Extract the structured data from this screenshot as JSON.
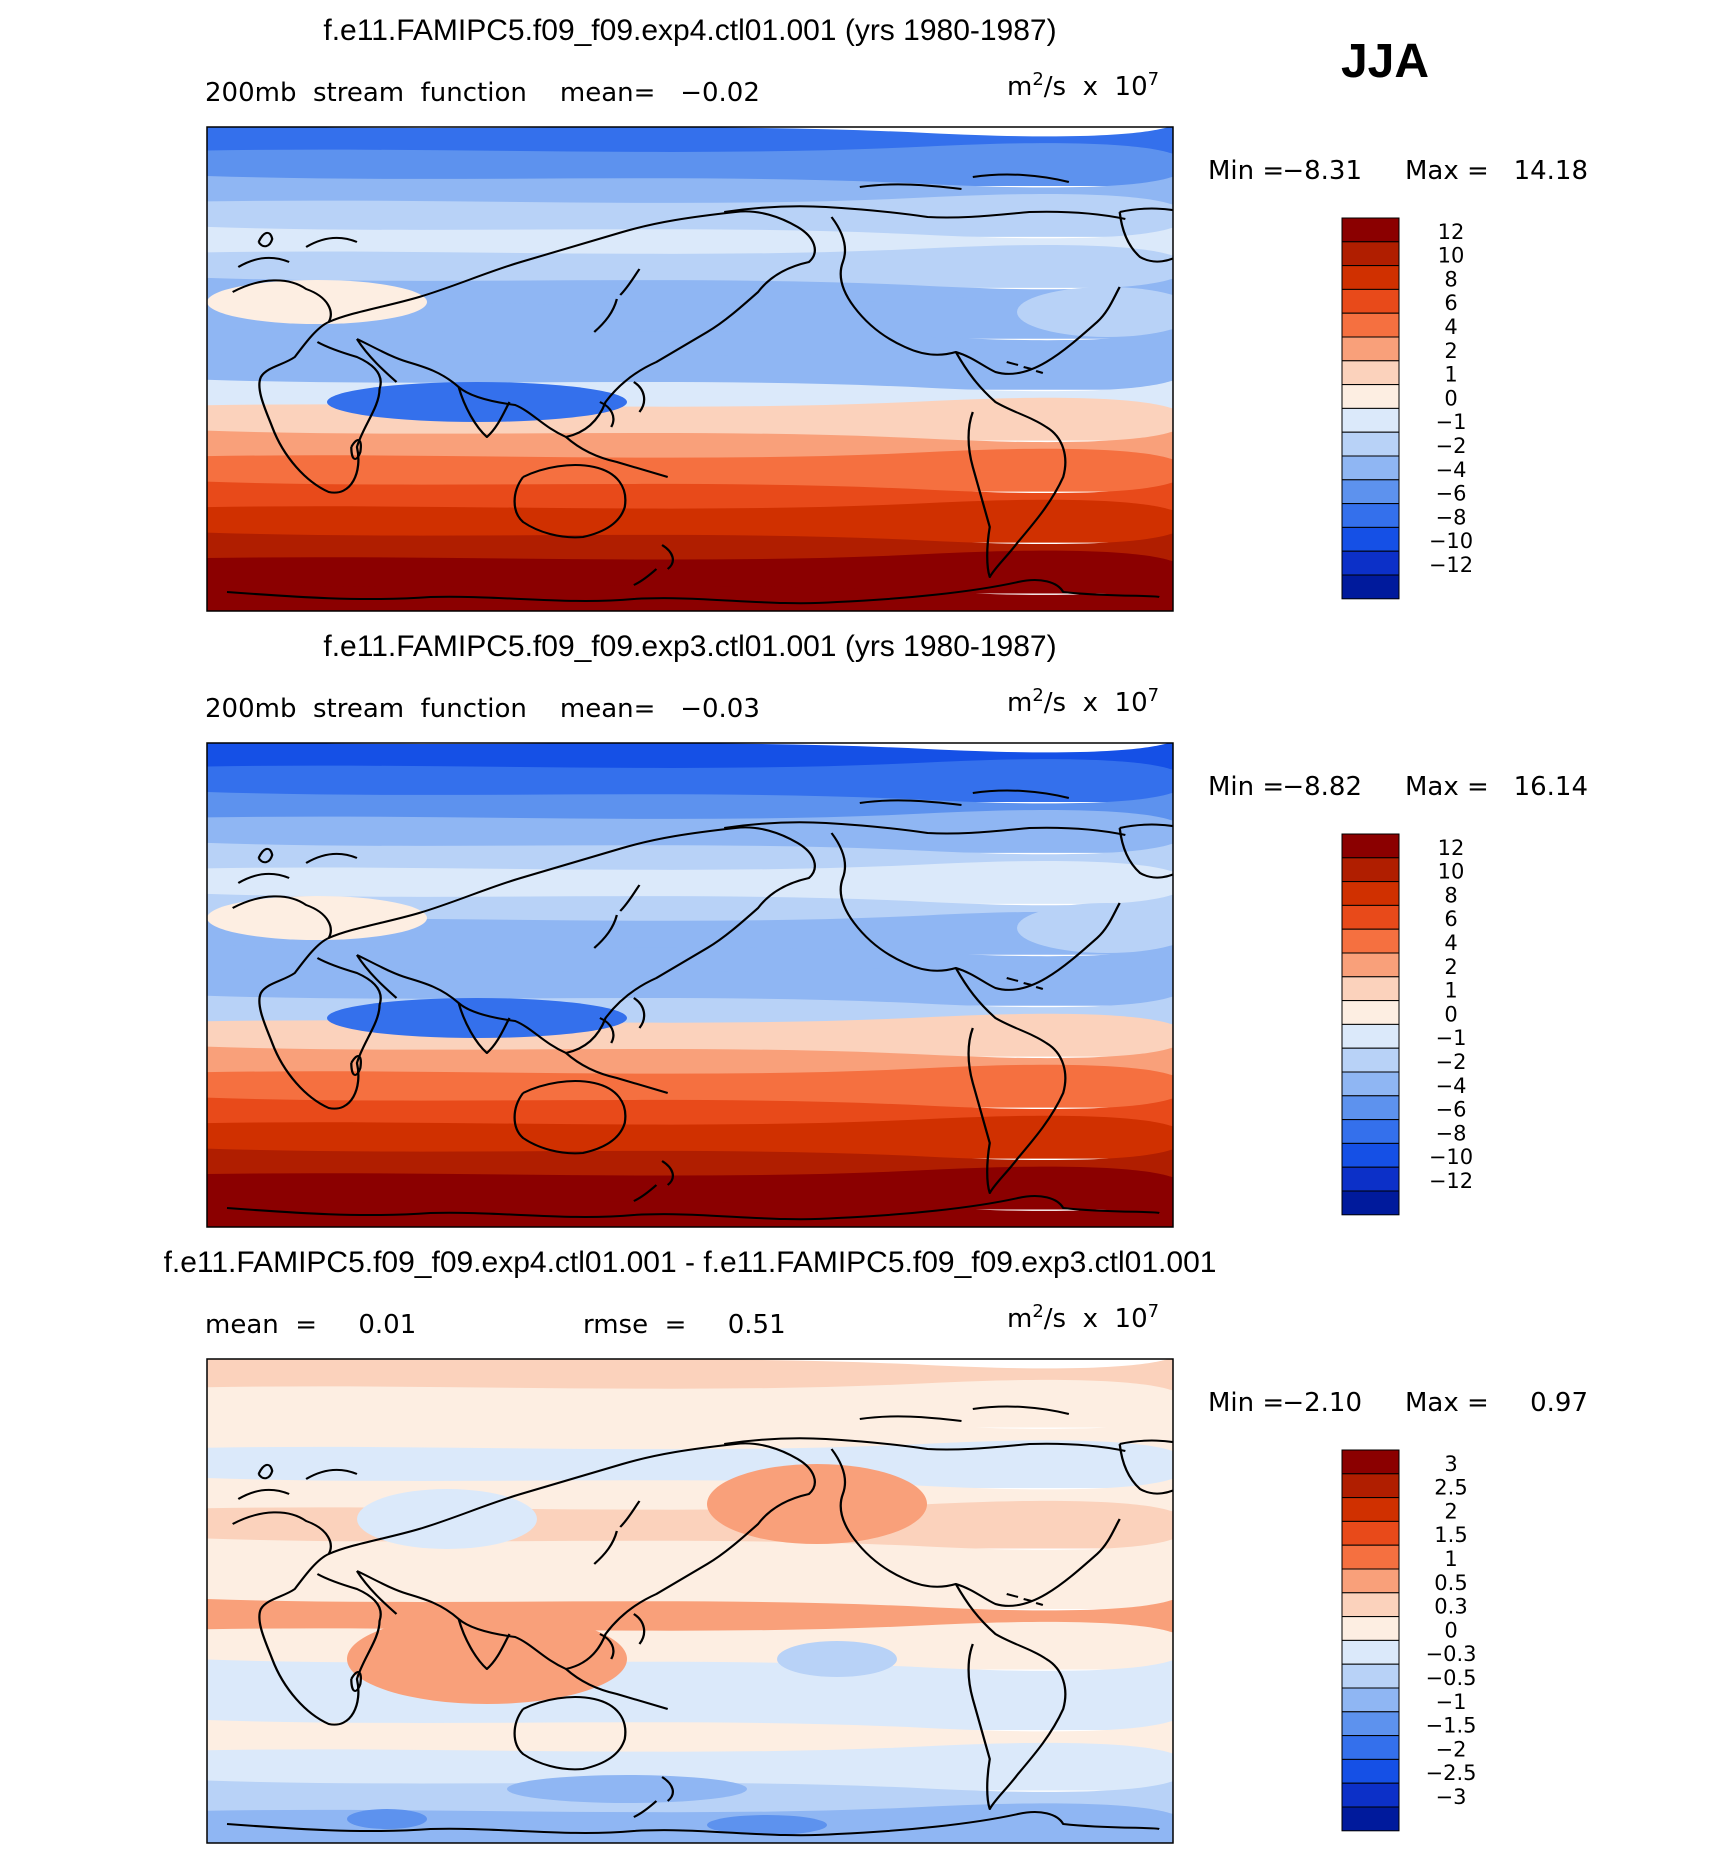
{
  "season": "JJA",
  "units_prefix": "m",
  "units_sup1": "2",
  "units_mid": "/s  x  10",
  "units_sup2": "7",
  "panels": [
    {
      "title": "f.e11.FAMIPC5.f09_f09.exp4.ctl01.001 (yrs 1980-1987)",
      "subtitle_left": "200mb  stream  function    mean=   −0.02",
      "subtitle_right": "",
      "min_label": "Min  =",
      "min_value": "−8.31",
      "max_label": "Max  =",
      "max_value": "14.18",
      "colorbar_labels": [
        "12",
        "10",
        "8",
        "6",
        "4",
        "2",
        "1",
        "0",
        "−1",
        "−2",
        "−4",
        "−6",
        "−8",
        "−10",
        "−12"
      ],
      "colorbar_colors": [
        "#8b0000",
        "#b01e00",
        "#d03000",
        "#e84a1a",
        "#f57040",
        "#f9a07a",
        "#fbd2bc",
        "#fdeee2",
        "#dbe9fa",
        "#b8d2f7",
        "#8fb6f3",
        "#5d92ee",
        "#3470ec",
        "#1550e6",
        "#0c30c8",
        "#001a9c"
      ]
    },
    {
      "title": "f.e11.FAMIPC5.f09_f09.exp3.ctl01.001 (yrs 1980-1987)",
      "subtitle_left": "200mb  stream  function    mean=   −0.03",
      "subtitle_right": "",
      "min_label": "Min  =",
      "min_value": "−8.82",
      "max_label": "Max  =",
      "max_value": "16.14",
      "colorbar_labels": [
        "12",
        "10",
        "8",
        "6",
        "4",
        "2",
        "1",
        "0",
        "−1",
        "−2",
        "−4",
        "−6",
        "−8",
        "−10",
        "−12"
      ],
      "colorbar_colors": [
        "#8b0000",
        "#b01e00",
        "#d03000",
        "#e84a1a",
        "#f57040",
        "#f9a07a",
        "#fbd2bc",
        "#fdeee2",
        "#dbe9fa",
        "#b8d2f7",
        "#8fb6f3",
        "#5d92ee",
        "#3470ec",
        "#1550e6",
        "#0c30c8",
        "#001a9c"
      ]
    },
    {
      "title": "f.e11.FAMIPC5.f09_f09.exp4.ctl01.001 - f.e11.FAMIPC5.f09_f09.exp3.ctl01.001",
      "subtitle_left": "mean  =     0.01",
      "subtitle_right": "rmse  =     0.51",
      "min_label": "Min  =",
      "min_value": "−2.10",
      "max_label": "Max  =",
      "max_value": "0.97",
      "colorbar_labels": [
        "3",
        "2.5",
        "2",
        "1.5",
        "1",
        "0.5",
        "0.3",
        "0",
        "−0.3",
        "−0.5",
        "−1",
        "−1.5",
        "−2",
        "−2.5",
        "−3"
      ],
      "colorbar_colors": [
        "#8b0000",
        "#b01e00",
        "#d03000",
        "#e84a1a",
        "#f57040",
        "#f9a07a",
        "#fbd2bc",
        "#fdeee2",
        "#dbe9fa",
        "#b8d2f7",
        "#8fb6f3",
        "#5d92ee",
        "#3470ec",
        "#1550e6",
        "#0c30c8",
        "#001a9c"
      ]
    }
  ],
  "chart_data": [
    {
      "type": "heatmap",
      "title": "f.e11.FAMIPC5.f09_f09.exp4.ctl01.001 (yrs 1980-1987)",
      "variable": "200mb stream function",
      "mean": -0.02,
      "min": -8.31,
      "max": 14.18,
      "levels": [
        -12,
        -10,
        -8,
        -6,
        -4,
        -2,
        -1,
        0,
        1,
        2,
        4,
        6,
        8,
        10,
        12
      ],
      "bands_north_to_south": [
        -8,
        -6,
        -4,
        -2,
        -1,
        -2,
        -4,
        -4,
        -4,
        -4,
        -1,
        1,
        2,
        4,
        6,
        8,
        10,
        12,
        14
      ]
    },
    {
      "type": "heatmap",
      "title": "f.e11.FAMIPC5.f09_f09.exp3.ctl01.001 (yrs 1980-1987)",
      "variable": "200mb stream function",
      "mean": -0.03,
      "min": -8.82,
      "max": 16.14,
      "levels": [
        -12,
        -10,
        -8,
        -6,
        -4,
        -2,
        -1,
        0,
        1,
        2,
        4,
        6,
        8,
        10,
        12
      ],
      "bands_north_to_south": [
        -10,
        -8,
        -6,
        -4,
        -2,
        -1,
        -2,
        -4,
        -4,
        -4,
        -2,
        1,
        2,
        4,
        6,
        8,
        10,
        12,
        14
      ]
    },
    {
      "type": "heatmap",
      "title": "f.e11.FAMIPC5.f09_f09.exp4.ctl01.001 - f.e11.FAMIPC5.f09_f09.exp3.ctl01.001",
      "variable": "200mb stream function difference",
      "mean": 0.01,
      "rmse": 0.51,
      "min": -2.1,
      "max": 0.97,
      "levels": [
        -3,
        -2.5,
        -2,
        -1.5,
        -1,
        -0.5,
        -0.3,
        0,
        0.3,
        0.5,
        1,
        1.5,
        2,
        2.5,
        3
      ],
      "bands_north_to_south": [
        0.3,
        0.2,
        0.1,
        -0.1,
        0.2,
        0.3,
        0.1,
        0.2,
        0.5,
        0.2,
        -0.2,
        -0.1,
        0.1,
        -0.2,
        -0.5,
        -0.8
      ]
    }
  ]
}
